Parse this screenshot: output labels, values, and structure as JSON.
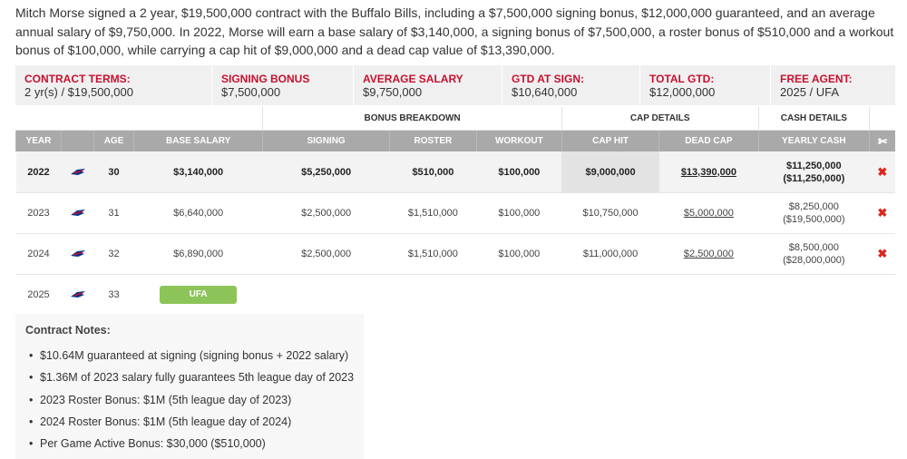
{
  "intro_text": "Mitch Morse signed a 2 year, $19,500,000 contract with the Buffalo Bills, including a $7,500,000 signing bonus, $12,000,000 guaranteed, and an average annual salary of $9,750,000. In 2022, Morse will earn a base salary of $3,140,000, a signing bonus of $7,500,000, a roster bonus of $510,000 and a workout bonus of $100,000, while carrying a cap hit of $9,000,000 and a dead cap value of $13,390,000.",
  "terms": [
    {
      "label": "CONTRACT TERMS:",
      "value": "2 yr(s) / $19,500,000"
    },
    {
      "label": "SIGNING BONUS",
      "value": "$7,500,000"
    },
    {
      "label": "AVERAGE SALARY",
      "value": "$9,750,000"
    },
    {
      "label": "GTD AT SIGN:",
      "value": "$10,640,000"
    },
    {
      "label": "TOTAL GTD:",
      "value": "$12,000,000"
    },
    {
      "label": "FREE AGENT:",
      "value": "2025 / UFA"
    }
  ],
  "groups": {
    "bonus": "BONUS BREAKDOWN",
    "cap": "CAP DETAILS",
    "cash": "CASH DETAILS"
  },
  "columns": {
    "year": "YEAR",
    "age": "AGE",
    "base": "BASE SALARY",
    "signing": "SIGNING",
    "roster": "ROSTER",
    "workout": "WORKOUT",
    "caphit": "CAP HIT",
    "dead": "DEAD CAP",
    "cash": "YEARLY CASH",
    "cut_icon": "scissors-icon"
  },
  "rows": [
    {
      "year": "2022",
      "age": "30",
      "base": "$3,140,000",
      "signing": "$5,250,000",
      "roster": "$510,000",
      "workout": "$100,000",
      "caphit": "$9,000,000",
      "dead": "$13,390,000",
      "cash": "$11,250,000",
      "cumcash": "($11,250,000)"
    },
    {
      "year": "2023",
      "age": "31",
      "base": "$6,640,000",
      "signing": "$2,500,000",
      "roster": "$1,510,000",
      "workout": "$100,000",
      "caphit": "$10,750,000",
      "dead": "$5,000,000",
      "cash": "$8,250,000",
      "cumcash": "($19,500,000)"
    },
    {
      "year": "2024",
      "age": "32",
      "base": "$6,890,000",
      "signing": "$2,500,000",
      "roster": "$1,510,000",
      "workout": "$100,000",
      "caphit": "$11,000,000",
      "dead": "$2,500,000",
      "cash": "$8,500,000",
      "cumcash": "($28,000,000)"
    }
  ],
  "final_year": {
    "year": "2025",
    "age": "33",
    "status": "UFA"
  },
  "notes": {
    "title": "Contract Notes:",
    "items": [
      "$10.64M guaranteed at signing (signing bonus + 2022 salary)",
      "$1.36M of 2023 salary fully guarantees 5th league day of 2023",
      "2023 Roster Bonus: $1M (5th league day of 2023)",
      "2024 Roster Bonus: $1M (5th league day of 2024)",
      "Per Game Active Bonus: $30,000 ($510,000)"
    ]
  },
  "colors": {
    "accent_red": "#c8102e",
    "ufa_green": "#8dc45a",
    "header_gray": "#a9a9a9",
    "bills_blue": "#00338d"
  }
}
